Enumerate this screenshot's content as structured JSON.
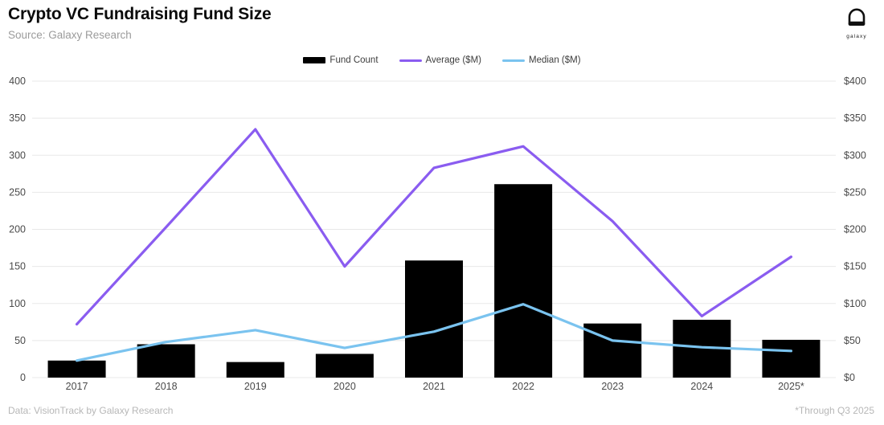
{
  "header": {
    "title": "Crypto VC Fundraising Fund Size",
    "subtitle": "Source: Galaxy Research",
    "logo": {
      "label": "galaxy",
      "icon": "galaxy-helmet-icon"
    }
  },
  "chart_data": {
    "type": "combo",
    "title": "Crypto VC Fundraising Fund Size",
    "categories": [
      "2017",
      "2018",
      "2019",
      "2020",
      "2021",
      "2022",
      "2023",
      "2024",
      "2025*"
    ],
    "series": [
      {
        "name": "Fund Count",
        "type": "bar",
        "axis": "left",
        "color": "#000000",
        "values": [
          23,
          45,
          21,
          32,
          158,
          261,
          73,
          78,
          51
        ]
      },
      {
        "name": "Average ($M)",
        "type": "line",
        "axis": "right",
        "color": "#8a5cf0",
        "values": [
          72,
          203,
          335,
          150,
          283,
          312,
          211,
          83,
          163
        ]
      },
      {
        "name": "Median ($M)",
        "type": "line",
        "axis": "right",
        "color": "#7ac3ef",
        "values": [
          23,
          48,
          64,
          40,
          62,
          99,
          50,
          41,
          36
        ]
      }
    ],
    "left_axis": {
      "min": 0,
      "max": 400,
      "step": 50,
      "prefix": "",
      "ticks": [
        0,
        50,
        100,
        150,
        200,
        250,
        300,
        350,
        400
      ]
    },
    "right_axis": {
      "min": 0,
      "max": 400,
      "step": 50,
      "prefix": "$",
      "ticks": [
        0,
        50,
        100,
        150,
        200,
        250,
        300,
        350,
        400
      ]
    },
    "grid": "horizontal-only",
    "legend_position": "top-center"
  },
  "footer": {
    "left": "Data: VisionTrack by Galaxy Research",
    "right": "*Through Q3 2025"
  },
  "colors": {
    "bar": "#000000",
    "average_line": "#8a5cf0",
    "median_line": "#7ac3ef",
    "grid": "#e8e8e8",
    "axis_text": "#4a4a4a",
    "subtitle_text": "#9b9b9b",
    "footer_text": "#b7b7b7",
    "legend_text": "#3d3d3d"
  }
}
